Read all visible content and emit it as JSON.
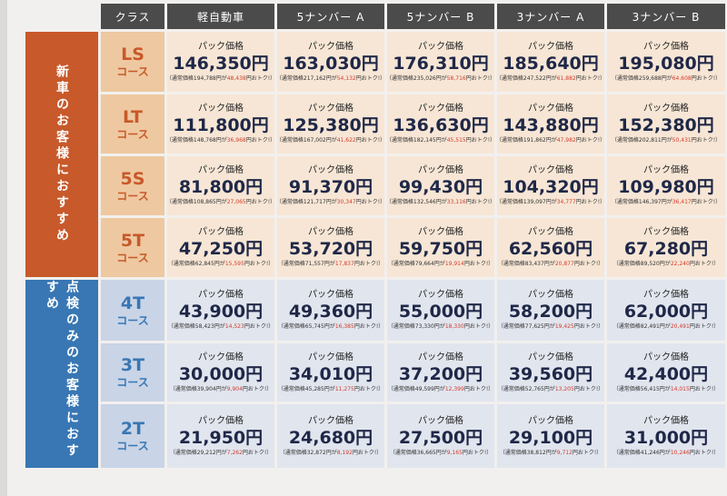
{
  "header": {
    "class_label": "クラス",
    "columns": [
      "軽自動車",
      "5ナンバー A",
      "5ナンバー B",
      "3ナンバー A",
      "3ナンバー B"
    ]
  },
  "groups": {
    "new": "新車のお客様におすすめ",
    "check": "点検のみのお客様におすすめ"
  },
  "labels": {
    "pack": "パック価格",
    "note_prefix": "（通常価格",
    "note_mid": "円が",
    "note_suffix": "円おトク!）"
  },
  "rows": [
    {
      "code": "LS",
      "sub": "コース",
      "group": "new",
      "cells": [
        {
          "price": "146,350円",
          "regular": "194,788",
          "save": "48,438"
        },
        {
          "price": "163,030円",
          "regular": "217,162",
          "save": "54,132"
        },
        {
          "price": "176,310円",
          "regular": "235,026",
          "save": "58,716"
        },
        {
          "price": "185,640円",
          "regular": "247,522",
          "save": "61,882"
        },
        {
          "price": "195,080円",
          "regular": "259,688",
          "save": "64,608"
        }
      ]
    },
    {
      "code": "LT",
      "sub": "コース",
      "group": "new",
      "cells": [
        {
          "price": "111,800円",
          "regular": "148,768",
          "save": "36,968"
        },
        {
          "price": "125,380円",
          "regular": "167,002",
          "save": "41,622"
        },
        {
          "price": "136,630円",
          "regular": "182,145",
          "save": "45,515"
        },
        {
          "price": "143,880円",
          "regular": "191,862",
          "save": "47,982"
        },
        {
          "price": "152,380円",
          "regular": "202,811",
          "save": "50,431"
        }
      ]
    },
    {
      "code": "5S",
      "sub": "コース",
      "group": "new",
      "cells": [
        {
          "price": "81,800円",
          "regular": "108,865",
          "save": "27,065"
        },
        {
          "price": "91,370円",
          "regular": "121,717",
          "save": "30,347"
        },
        {
          "price": "99,430円",
          "regular": "132,546",
          "save": "33,116"
        },
        {
          "price": "104,320円",
          "regular": "139,097",
          "save": "34,777"
        },
        {
          "price": "109,980円",
          "regular": "146,397",
          "save": "36,417"
        }
      ]
    },
    {
      "code": "5T",
      "sub": "コース",
      "group": "new",
      "cells": [
        {
          "price": "47,250円",
          "regular": "62,845",
          "save": "15,595"
        },
        {
          "price": "53,720円",
          "regular": "71,557",
          "save": "17,837"
        },
        {
          "price": "59,750円",
          "regular": "79,664",
          "save": "19,914"
        },
        {
          "price": "62,560円",
          "regular": "83,437",
          "save": "20,877"
        },
        {
          "price": "67,280円",
          "regular": "89,520",
          "save": "22,240"
        }
      ]
    },
    {
      "code": "4T",
      "sub": "コース",
      "group": "check",
      "cells": [
        {
          "price": "43,900円",
          "regular": "58,423",
          "save": "14,523"
        },
        {
          "price": "49,360円",
          "regular": "65,745",
          "save": "16,385"
        },
        {
          "price": "55,000円",
          "regular": "73,330",
          "save": "18,330"
        },
        {
          "price": "58,200円",
          "regular": "77,625",
          "save": "19,425"
        },
        {
          "price": "62,000円",
          "regular": "82,491",
          "save": "20,491"
        }
      ]
    },
    {
      "code": "3T",
      "sub": "コース",
      "group": "check",
      "cells": [
        {
          "price": "30,000円",
          "regular": "39,904",
          "save": "9,904"
        },
        {
          "price": "34,010円",
          "regular": "45,285",
          "save": "11,275"
        },
        {
          "price": "37,200円",
          "regular": "49,599",
          "save": "12,399"
        },
        {
          "price": "39,560円",
          "regular": "52,765",
          "save": "13,205"
        },
        {
          "price": "42,400円",
          "regular": "56,415",
          "save": "14,015"
        }
      ]
    },
    {
      "code": "2T",
      "sub": "コース",
      "group": "check",
      "cells": [
        {
          "price": "21,950円",
          "regular": "29,212",
          "save": "7,262"
        },
        {
          "price": "24,680円",
          "regular": "32,872",
          "save": "8,192"
        },
        {
          "price": "27,500円",
          "regular": "36,665",
          "save": "9,165"
        },
        {
          "price": "29,100円",
          "regular": "38,812",
          "save": "9,712"
        },
        {
          "price": "31,000円",
          "regular": "41,246",
          "save": "10,246"
        }
      ]
    }
  ]
}
